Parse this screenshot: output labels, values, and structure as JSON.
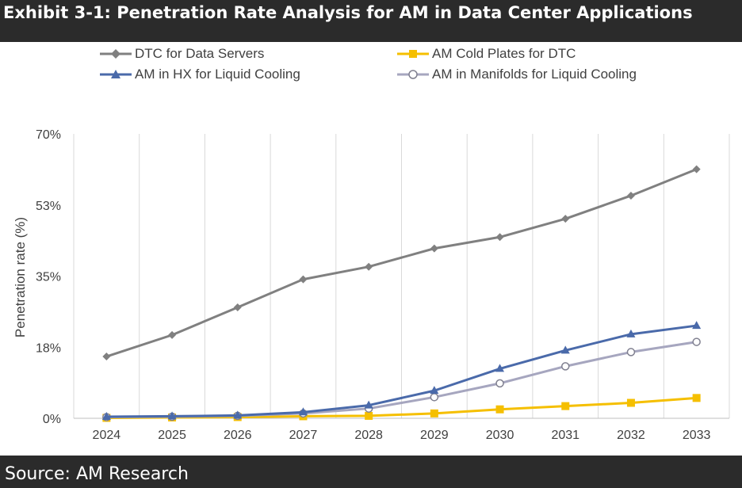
{
  "title": "Exhibit 3-1: Penetration Rate Analysis for AM in Data Center Applications",
  "source": "Source: AM Research",
  "chart_data": {
    "type": "line",
    "ylabel": "Penetration rate (%)",
    "xlabel": "",
    "ylim": [
      0,
      70
    ],
    "yticks": [
      "0%",
      "18%",
      "35%",
      "53%",
      "70%"
    ],
    "grid": "vertical",
    "legend_position": "top",
    "categories": [
      "2024",
      "2025",
      "2026",
      "2027",
      "2028",
      "2029",
      "2030",
      "2031",
      "2032",
      "2033"
    ],
    "series": [
      {
        "name": "DTC for Data Servers",
        "color": "#808080",
        "marker": "diamond",
        "values": [
          15.2,
          20.5,
          27.3,
          34.2,
          37.3,
          41.8,
          44.6,
          49.1,
          54.8,
          61.3
        ]
      },
      {
        "name": "AM Cold Plates for DTC",
        "color": "#f5bf00",
        "marker": "square",
        "values": [
          0.1,
          0.2,
          0.3,
          0.5,
          0.6,
          1.2,
          2.2,
          3.0,
          3.8,
          5.0
        ]
      },
      {
        "name": "AM in HX for Liquid Cooling",
        "color": "#4a6aaa",
        "marker": "triangle",
        "values": [
          0.4,
          0.5,
          0.7,
          1.5,
          3.2,
          6.8,
          12.2,
          16.7,
          20.7,
          22.8
        ]
      },
      {
        "name": "AM in Manifolds for Liquid Cooling",
        "color": "#a6a6bf",
        "marker": "circle",
        "values": [
          0.3,
          0.4,
          0.6,
          1.2,
          2.4,
          5.2,
          8.6,
          12.8,
          16.3,
          18.8
        ]
      }
    ]
  }
}
